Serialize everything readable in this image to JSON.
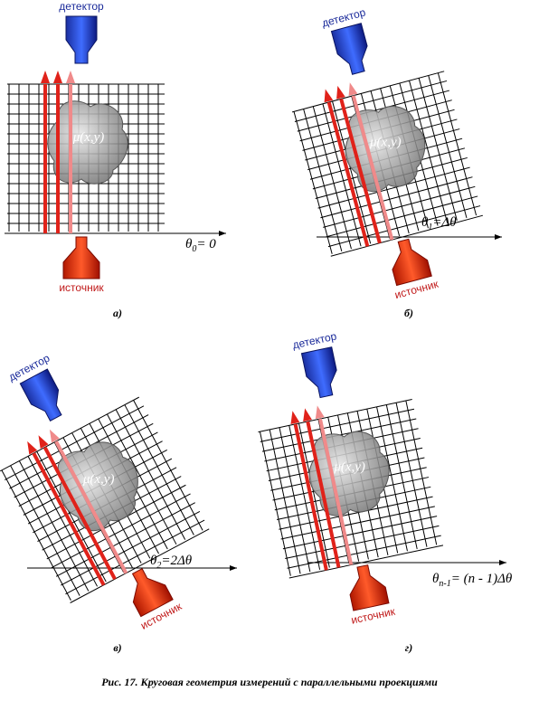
{
  "panels": [
    {
      "detector": "детектор",
      "object": "μ(x,y)",
      "angle": {
        "symbol": "θ",
        "index": "0",
        "rest": "= 0"
      },
      "source": "источник",
      "label": "а)"
    },
    {
      "detector": "детектор",
      "object": "μ(x,y)",
      "angle": {
        "symbol": "θ",
        "index": "1",
        "rest": "=Δθ"
      },
      "source": "источник",
      "label": "б)"
    },
    {
      "detector": "детектор",
      "object": "μ(x,y)",
      "angle": {
        "symbol": "θ",
        "index": "2",
        "rest": "=2Δθ"
      },
      "source": "источник",
      "label": "в)"
    },
    {
      "detector": "детектор",
      "object": "μ(x,y)",
      "angle": {
        "symbol": "θ",
        "index": "n-1",
        "rest": "= (n - 1)Δθ"
      },
      "source": "источник",
      "label": "г)"
    }
  ],
  "caption": "Рис. 17. Круговая геометрия измерений с параллельными проекциями"
}
